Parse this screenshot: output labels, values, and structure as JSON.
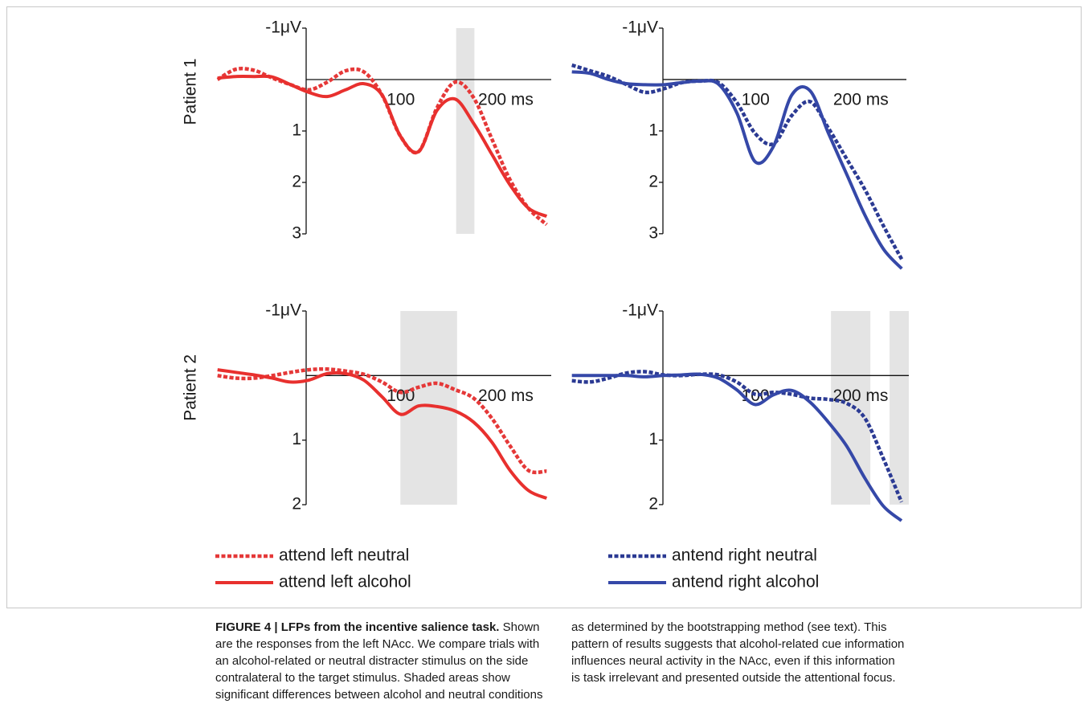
{
  "chart_data": [
    {
      "type": "line",
      "ylabel": "Patient 1",
      "x": [
        -100,
        -80,
        -60,
        -40,
        -20,
        0,
        20,
        40,
        60,
        80,
        100,
        120,
        140,
        160,
        180,
        200,
        220,
        240,
        260
      ],
      "series": [
        {
          "color": "#e53838",
          "dashed": true,
          "values": [
            0.0,
            -0.2,
            -0.18,
            -0.03,
            0.1,
            0.2,
            0.05,
            -0.17,
            -0.15,
            0.3,
            1.1,
            1.4,
            0.55,
            0.05,
            0.35,
            1.15,
            1.95,
            2.5,
            2.82
          ]
        },
        {
          "color": "#e8302e",
          "dashed": false,
          "values": [
            -0.03,
            -0.06,
            -0.06,
            -0.05,
            0.1,
            0.25,
            0.33,
            0.2,
            0.08,
            0.3,
            1.1,
            1.4,
            0.6,
            0.38,
            0.85,
            1.45,
            2.05,
            2.5,
            2.66
          ]
        }
      ],
      "xlim": [
        -105,
        265
      ],
      "ylim": [
        -1,
        3
      ],
      "y_inverted": true,
      "xticks": [
        100,
        {
          "value": 200,
          "label": "200 ms"
        }
      ],
      "yticks": [
        {
          "value": -1,
          "label": "-1μV"
        },
        1,
        2,
        3
      ],
      "shaded": [
        [
          161,
          181
        ]
      ]
    },
    {
      "type": "line",
      "x": [
        -100,
        -80,
        -60,
        -40,
        -20,
        0,
        20,
        40,
        60,
        80,
        100,
        120,
        140,
        160,
        180,
        200,
        220,
        240,
        260
      ],
      "series": [
        {
          "color": "#2b3a93",
          "dashed": true,
          "values": [
            -0.28,
            -0.17,
            -0.06,
            0.1,
            0.25,
            0.18,
            0.06,
            0.03,
            0.06,
            0.45,
            1.05,
            1.25,
            0.7,
            0.43,
            0.95,
            1.55,
            2.15,
            2.85,
            3.5
          ]
        },
        {
          "color": "#3548a8",
          "dashed": false,
          "values": [
            -0.15,
            -0.12,
            0.0,
            0.08,
            0.1,
            0.1,
            0.06,
            0.03,
            0.09,
            0.65,
            1.6,
            1.3,
            0.3,
            0.22,
            1.05,
            1.85,
            2.65,
            3.3,
            3.68
          ]
        }
      ],
      "xlim": [
        -105,
        265
      ],
      "ylim": [
        -1,
        3.8
      ],
      "y_inverted": true,
      "xticks": [
        100,
        {
          "value": 200,
          "label": "200 ms"
        }
      ],
      "yticks": [
        {
          "value": -1,
          "label": "-1μV"
        },
        1,
        2,
        3
      ],
      "shaded": []
    },
    {
      "type": "line",
      "ylabel": "Patient 2",
      "x": [
        -100,
        -80,
        -60,
        -40,
        -20,
        0,
        20,
        40,
        60,
        80,
        100,
        120,
        140,
        160,
        180,
        200,
        220,
        240,
        260
      ],
      "series": [
        {
          "name": "attend left neutral",
          "color": "#e53838",
          "dashed": true,
          "values": [
            0.0,
            0.04,
            0.04,
            0.0,
            -0.05,
            -0.09,
            -0.1,
            -0.07,
            -0.02,
            0.1,
            0.26,
            0.18,
            0.12,
            0.22,
            0.35,
            0.66,
            1.09,
            1.47,
            1.48
          ]
        },
        {
          "name": "attend left alcohol",
          "color": "#e8302e",
          "dashed": false,
          "values": [
            -0.09,
            -0.05,
            -0.01,
            0.04,
            0.1,
            0.07,
            -0.03,
            -0.03,
            0.07,
            0.33,
            0.6,
            0.47,
            0.48,
            0.55,
            0.72,
            1.03,
            1.47,
            1.78,
            1.9
          ]
        }
      ],
      "xlim": [
        -105,
        265
      ],
      "ylim": [
        -1,
        2
      ],
      "y_inverted": true,
      "xticks": [
        100,
        {
          "value": 200,
          "label": "200 ms"
        }
      ],
      "yticks": [
        {
          "value": -1,
          "label": "-1μV"
        },
        1,
        2
      ],
      "shaded": [
        [
          100,
          162
        ]
      ],
      "legend": true
    },
    {
      "type": "line",
      "x": [
        -100,
        -80,
        -60,
        -40,
        -20,
        0,
        20,
        40,
        60,
        80,
        100,
        120,
        140,
        160,
        180,
        200,
        220,
        240,
        260
      ],
      "series": [
        {
          "name": "antend right neutral",
          "color": "#2b3a93",
          "dashed": true,
          "values": [
            0.08,
            0.1,
            0.04,
            -0.04,
            -0.06,
            -0.01,
            0.0,
            -0.02,
            -0.01,
            0.1,
            0.29,
            0.26,
            0.29,
            0.35,
            0.37,
            0.43,
            0.66,
            1.28,
            1.96
          ]
        },
        {
          "name": "antend right alcohol",
          "color": "#3548a8",
          "dashed": false,
          "values": [
            0.0,
            0.0,
            0.0,
            0.0,
            0.02,
            0.0,
            -0.01,
            -0.02,
            0.04,
            0.22,
            0.45,
            0.3,
            0.23,
            0.41,
            0.72,
            1.09,
            1.59,
            2.02,
            2.25
          ]
        }
      ],
      "xlim": [
        -105,
        268
      ],
      "ylim": [
        -1,
        2.3
      ],
      "y_inverted": true,
      "xticks": [
        100,
        {
          "value": 200,
          "label": "200 ms"
        }
      ],
      "yticks": [
        {
          "value": -1,
          "label": "-1μV"
        },
        1,
        2
      ],
      "shaded": [
        [
          183,
          226
        ],
        [
          247,
          268
        ]
      ],
      "legend": true
    }
  ],
  "caption": {
    "title": "FIGURE 4 | LFPs from the incentive salience task.",
    "text": "Shown are the responses from the left NAcc. We compare trials with an alcohol-related or neutral distracter stimulus on the side contralateral to the target stimulus. Shaded areas show significant differences between alcohol and neutral conditions as determined by the bootstrapping method (see text). This pattern of results suggests that alcohol-related cue information influences neural activity in the NAcc, even if this information is task irrelevant and presented outside the attentional focus."
  }
}
